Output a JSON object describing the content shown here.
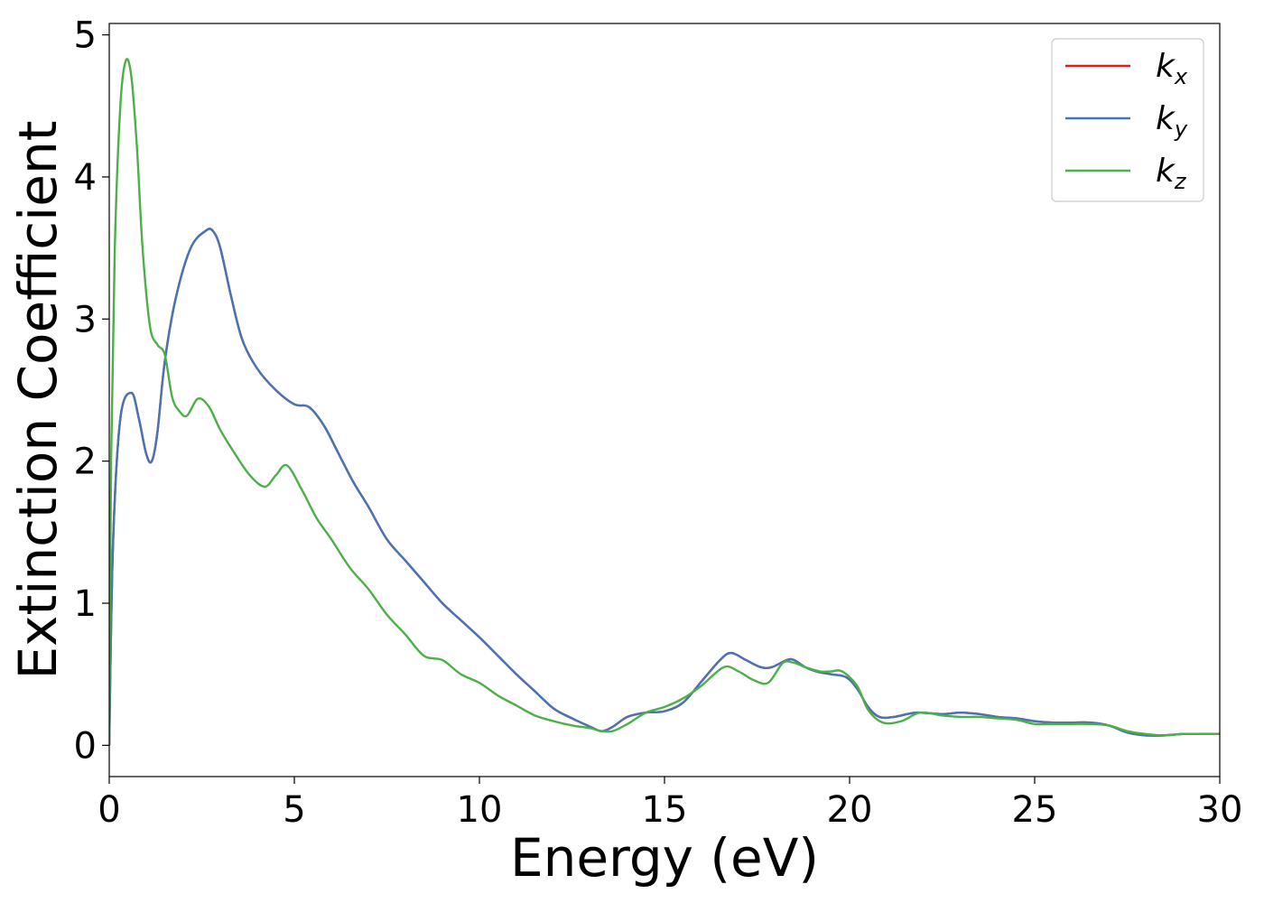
{
  "chart_data": {
    "type": "line",
    "xlabel": "Energy (eV)",
    "ylabel": "Extinction Coefficient",
    "xlim": [
      0,
      30
    ],
    "ylim": [
      -0.22,
      5.08
    ],
    "xticks": [
      0,
      5,
      10,
      15,
      20,
      25,
      30
    ],
    "yticks": [
      0,
      1,
      2,
      3,
      4,
      5
    ],
    "grid": false,
    "legend_position": "top-right",
    "series": [
      {
        "name": "k_x",
        "label_base": "k",
        "label_sub": "x",
        "color": "#e41a1c",
        "x": [
          0,
          0.1,
          0.3,
          0.6,
          0.8,
          1.0,
          1.15,
          1.3,
          1.5,
          1.8,
          2.2,
          2.6,
          2.8,
          3.0,
          3.3,
          3.6,
          4.0,
          4.5,
          5.0,
          5.4,
          5.8,
          6.2,
          6.6,
          7.0,
          7.5,
          8.0,
          8.5,
          9.0,
          9.5,
          10.0,
          10.5,
          11.0,
          11.5,
          12.0,
          12.5,
          13.0,
          13.3,
          13.6,
          14.0,
          14.5,
          15.0,
          15.5,
          16.0,
          16.5,
          16.8,
          17.2,
          17.6,
          17.9,
          18.3,
          18.5,
          18.8,
          19.1,
          19.5,
          19.9,
          20.2,
          20.5,
          20.8,
          21.2,
          21.8,
          22.5,
          23.0,
          23.5,
          24.0,
          24.5,
          25.0,
          25.5,
          26.0,
          26.5,
          27.0,
          27.5,
          28.0,
          28.5,
          29.0,
          29.5,
          30.0
        ],
        "y": [
          0.0,
          1.4,
          2.3,
          2.48,
          2.3,
          2.05,
          2.0,
          2.2,
          2.7,
          3.15,
          3.5,
          3.62,
          3.62,
          3.5,
          3.15,
          2.85,
          2.65,
          2.5,
          2.4,
          2.38,
          2.25,
          2.05,
          1.85,
          1.68,
          1.45,
          1.3,
          1.15,
          1.0,
          0.88,
          0.76,
          0.63,
          0.5,
          0.38,
          0.26,
          0.19,
          0.13,
          0.1,
          0.13,
          0.2,
          0.23,
          0.24,
          0.3,
          0.45,
          0.6,
          0.65,
          0.6,
          0.55,
          0.55,
          0.6,
          0.6,
          0.55,
          0.52,
          0.5,
          0.48,
          0.4,
          0.27,
          0.2,
          0.2,
          0.23,
          0.22,
          0.23,
          0.22,
          0.2,
          0.19,
          0.17,
          0.16,
          0.16,
          0.16,
          0.14,
          0.09,
          0.07,
          0.07,
          0.08,
          0.08,
          0.08
        ]
      },
      {
        "name": "k_y",
        "label_base": "k",
        "label_sub": "y",
        "color": "#4575b4",
        "x": [
          0,
          0.1,
          0.3,
          0.6,
          0.8,
          1.0,
          1.15,
          1.3,
          1.5,
          1.8,
          2.2,
          2.6,
          2.8,
          3.0,
          3.3,
          3.6,
          4.0,
          4.5,
          5.0,
          5.4,
          5.8,
          6.2,
          6.6,
          7.0,
          7.5,
          8.0,
          8.5,
          9.0,
          9.5,
          10.0,
          10.5,
          11.0,
          11.5,
          12.0,
          12.5,
          13.0,
          13.3,
          13.6,
          14.0,
          14.5,
          15.0,
          15.5,
          16.0,
          16.5,
          16.8,
          17.2,
          17.6,
          17.9,
          18.3,
          18.5,
          18.8,
          19.1,
          19.5,
          19.9,
          20.2,
          20.5,
          20.8,
          21.2,
          21.8,
          22.5,
          23.0,
          23.5,
          24.0,
          24.5,
          25.0,
          25.5,
          26.0,
          26.5,
          27.0,
          27.5,
          28.0,
          28.5,
          29.0,
          29.5,
          30.0
        ],
        "y": [
          0.0,
          1.4,
          2.3,
          2.48,
          2.3,
          2.05,
          2.0,
          2.2,
          2.7,
          3.15,
          3.5,
          3.62,
          3.62,
          3.5,
          3.15,
          2.85,
          2.65,
          2.5,
          2.4,
          2.38,
          2.25,
          2.05,
          1.85,
          1.68,
          1.45,
          1.3,
          1.15,
          1.0,
          0.88,
          0.76,
          0.63,
          0.5,
          0.38,
          0.26,
          0.19,
          0.13,
          0.1,
          0.13,
          0.2,
          0.23,
          0.24,
          0.3,
          0.45,
          0.6,
          0.65,
          0.6,
          0.55,
          0.55,
          0.6,
          0.6,
          0.55,
          0.52,
          0.5,
          0.48,
          0.4,
          0.27,
          0.2,
          0.2,
          0.23,
          0.22,
          0.23,
          0.22,
          0.2,
          0.19,
          0.17,
          0.16,
          0.16,
          0.16,
          0.14,
          0.09,
          0.07,
          0.07,
          0.08,
          0.08,
          0.08
        ]
      },
      {
        "name": "k_z",
        "label_base": "k",
        "label_sub": "z",
        "color": "#4daf4a",
        "x": [
          0,
          0.05,
          0.15,
          0.3,
          0.45,
          0.6,
          0.75,
          0.9,
          1.1,
          1.3,
          1.5,
          1.7,
          1.9,
          2.1,
          2.4,
          2.7,
          3.0,
          3.4,
          3.8,
          4.2,
          4.5,
          4.8,
          5.2,
          5.6,
          6.0,
          6.5,
          7.0,
          7.5,
          8.0,
          8.5,
          9.0,
          9.5,
          10.0,
          10.5,
          11.0,
          11.5,
          12.0,
          12.5,
          13.0,
          13.3,
          13.6,
          14.0,
          14.5,
          15.0,
          15.5,
          16.0,
          16.6,
          17.0,
          17.4,
          17.8,
          18.2,
          18.5,
          18.8,
          19.2,
          19.5,
          19.8,
          20.2,
          20.5,
          20.9,
          21.4,
          21.9,
          22.5,
          23.0,
          23.5,
          24.0,
          24.5,
          25.0,
          25.5,
          26.0,
          26.5,
          27.0,
          27.5,
          28.0,
          28.5,
          29.0,
          29.5,
          30.0
        ],
        "y": [
          0.0,
          2.0,
          3.5,
          4.5,
          4.82,
          4.7,
          4.2,
          3.5,
          2.95,
          2.82,
          2.75,
          2.45,
          2.35,
          2.32,
          2.44,
          2.38,
          2.22,
          2.05,
          1.9,
          1.82,
          1.9,
          1.97,
          1.8,
          1.6,
          1.45,
          1.25,
          1.1,
          0.92,
          0.78,
          0.63,
          0.6,
          0.5,
          0.44,
          0.35,
          0.28,
          0.21,
          0.17,
          0.14,
          0.12,
          0.1,
          0.1,
          0.15,
          0.23,
          0.27,
          0.33,
          0.42,
          0.55,
          0.52,
          0.46,
          0.44,
          0.58,
          0.58,
          0.55,
          0.52,
          0.52,
          0.52,
          0.42,
          0.25,
          0.16,
          0.17,
          0.23,
          0.21,
          0.2,
          0.2,
          0.19,
          0.18,
          0.15,
          0.15,
          0.15,
          0.15,
          0.14,
          0.1,
          0.08,
          0.07,
          0.08,
          0.08,
          0.08
        ]
      }
    ]
  }
}
